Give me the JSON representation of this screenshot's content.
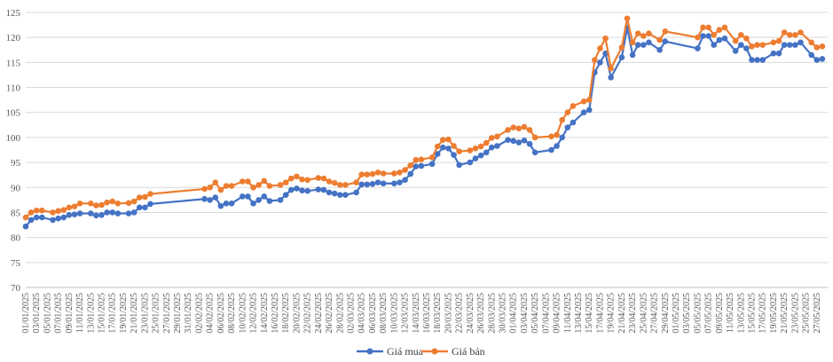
{
  "chart_data": {
    "type": "line",
    "title": "",
    "xlabel": "",
    "ylabel": "",
    "ylim": [
      70,
      125
    ],
    "yticks": [
      70,
      75,
      80,
      85,
      90,
      95,
      100,
      105,
      110,
      115,
      120,
      125
    ],
    "grid": "horizontal",
    "legend_position": "bottom",
    "x_start": "2025-01-01",
    "x_end": "2025-05-29",
    "xtick_labels": [
      "01/01/2025",
      "03/01/2025",
      "05/01/2025",
      "07/01/2025",
      "09/01/2025",
      "11/01/2025",
      "13/01/2025",
      "15/01/2025",
      "17/01/2025",
      "19/01/2025",
      "21/01/2025",
      "23/01/2025",
      "25/01/2025",
      "27/01/2025",
      "29/01/2025",
      "31/01/2025",
      "02/02/2025",
      "04/02/2025",
      "06/02/2025",
      "08/02/2025",
      "10/02/2025",
      "12/02/2025",
      "14/02/2025",
      "16/02/2025",
      "18/02/2025",
      "20/02/2025",
      "22/02/2025",
      "24/02/2025",
      "26/02/2025",
      "28/02/2025",
      "02/03/2025",
      "04/03/2025",
      "06/03/2025",
      "08/03/2025",
      "10/03/2025",
      "12/03/2025",
      "14/03/2025",
      "16/03/2025",
      "18/03/2025",
      "20/03/2025",
      "22/03/2025",
      "24/03/2025",
      "26/03/2025",
      "28/03/2025",
      "30/03/2025",
      "01/04/2025",
      "03/04/2025",
      "05/04/2025",
      "07/04/2025",
      "09/04/2025",
      "11/04/2025",
      "13/04/2025",
      "15/04/2025",
      "17/04/2025",
      "19/04/2025",
      "21/04/2025",
      "23/04/2025",
      "25/04/2025",
      "27/04/2025",
      "29/04/2025",
      "01/05/2025",
      "03/05/2025",
      "05/05/2025",
      "07/05/2025",
      "09/05/2025",
      "11/05/2025",
      "13/05/2025",
      "15/05/2025",
      "17/05/2025",
      "19/05/2025",
      "21/05/2025",
      "23/05/2025",
      "25/05/2025",
      "27/05/2025"
    ],
    "series": [
      {
        "name": "Giá mua",
        "color": "#4472c4",
        "points": [
          [
            "2025-01-01",
            82.2
          ],
          [
            "2025-01-02",
            83.5
          ],
          [
            "2025-01-03",
            84.0
          ],
          [
            "2025-01-04",
            84.0
          ],
          [
            "2025-01-06",
            83.5
          ],
          [
            "2025-01-07",
            83.8
          ],
          [
            "2025-01-08",
            84.0
          ],
          [
            "2025-01-09",
            84.5
          ],
          [
            "2025-01-10",
            84.6
          ],
          [
            "2025-01-11",
            84.8
          ],
          [
            "2025-01-13",
            84.8
          ],
          [
            "2025-01-14",
            84.4
          ],
          [
            "2025-01-15",
            84.5
          ],
          [
            "2025-01-16",
            85.0
          ],
          [
            "2025-01-17",
            85.0
          ],
          [
            "2025-01-18",
            84.8
          ],
          [
            "2025-01-20",
            84.8
          ],
          [
            "2025-01-21",
            85.0
          ],
          [
            "2025-01-22",
            86.0
          ],
          [
            "2025-01-23",
            86.0
          ],
          [
            "2025-01-24",
            86.7
          ],
          [
            "2025-02-03",
            87.7
          ],
          [
            "2025-02-04",
            87.5
          ],
          [
            "2025-02-05",
            88.0
          ],
          [
            "2025-02-06",
            86.3
          ],
          [
            "2025-02-07",
            86.8
          ],
          [
            "2025-02-08",
            86.8
          ],
          [
            "2025-02-10",
            88.2
          ],
          [
            "2025-02-11",
            88.2
          ],
          [
            "2025-02-12",
            86.8
          ],
          [
            "2025-02-13",
            87.5
          ],
          [
            "2025-02-14",
            88.2
          ],
          [
            "2025-02-15",
            87.3
          ],
          [
            "2025-02-17",
            87.5
          ],
          [
            "2025-02-18",
            88.5
          ],
          [
            "2025-02-19",
            89.5
          ],
          [
            "2025-02-20",
            89.8
          ],
          [
            "2025-02-21",
            89.4
          ],
          [
            "2025-02-22",
            89.3
          ],
          [
            "2025-02-24",
            89.6
          ],
          [
            "2025-02-25",
            89.5
          ],
          [
            "2025-02-26",
            89.0
          ],
          [
            "2025-02-27",
            88.8
          ],
          [
            "2025-02-28",
            88.5
          ],
          [
            "2025-03-01",
            88.5
          ],
          [
            "2025-03-03",
            89.0
          ],
          [
            "2025-03-04",
            90.6
          ],
          [
            "2025-03-05",
            90.6
          ],
          [
            "2025-03-06",
            90.7
          ],
          [
            "2025-03-07",
            91.0
          ],
          [
            "2025-03-08",
            90.8
          ],
          [
            "2025-03-10",
            90.8
          ],
          [
            "2025-03-11",
            91.0
          ],
          [
            "2025-03-12",
            91.5
          ],
          [
            "2025-03-13",
            92.7
          ],
          [
            "2025-03-14",
            94.2
          ],
          [
            "2025-03-15",
            94.3
          ],
          [
            "2025-03-17",
            94.7
          ],
          [
            "2025-03-18",
            96.7
          ],
          [
            "2025-03-19",
            98.0
          ],
          [
            "2025-03-20",
            97.8
          ],
          [
            "2025-03-21",
            96.5
          ],
          [
            "2025-03-22",
            94.5
          ],
          [
            "2025-03-24",
            95.0
          ],
          [
            "2025-03-25",
            95.8
          ],
          [
            "2025-03-26",
            96.4
          ],
          [
            "2025-03-27",
            97.0
          ],
          [
            "2025-03-28",
            98.0
          ],
          [
            "2025-03-29",
            98.3
          ],
          [
            "2025-03-31",
            99.5
          ],
          [
            "2025-04-01",
            99.3
          ],
          [
            "2025-04-02",
            99.0
          ],
          [
            "2025-04-03",
            99.4
          ],
          [
            "2025-04-04",
            98.7
          ],
          [
            "2025-04-05",
            97.0
          ],
          [
            "2025-04-08",
            97.5
          ],
          [
            "2025-04-09",
            98.3
          ],
          [
            "2025-04-10",
            100.0
          ],
          [
            "2025-04-11",
            102.0
          ],
          [
            "2025-04-12",
            103.0
          ],
          [
            "2025-04-14",
            105.0
          ],
          [
            "2025-04-15",
            105.5
          ],
          [
            "2025-04-16",
            113.0
          ],
          [
            "2025-04-17",
            115.0
          ],
          [
            "2025-04-18",
            116.8
          ],
          [
            "2025-04-19",
            112.0
          ],
          [
            "2025-04-21",
            116.0
          ],
          [
            "2025-04-22",
            122.0
          ],
          [
            "2025-04-23",
            116.5
          ],
          [
            "2025-04-24",
            118.5
          ],
          [
            "2025-04-25",
            118.5
          ],
          [
            "2025-04-26",
            119.0
          ],
          [
            "2025-04-28",
            117.5
          ],
          [
            "2025-04-29",
            119.2
          ],
          [
            "2025-05-05",
            117.8
          ],
          [
            "2025-05-06",
            120.3
          ],
          [
            "2025-05-07",
            120.3
          ],
          [
            "2025-05-08",
            118.5
          ],
          [
            "2025-05-09",
            119.5
          ],
          [
            "2025-05-10",
            119.8
          ],
          [
            "2025-05-12",
            117.3
          ],
          [
            "2025-05-13",
            118.5
          ],
          [
            "2025-05-14",
            117.8
          ],
          [
            "2025-05-15",
            115.5
          ],
          [
            "2025-05-16",
            115.5
          ],
          [
            "2025-05-17",
            115.5
          ],
          [
            "2025-05-19",
            116.8
          ],
          [
            "2025-05-20",
            116.8
          ],
          [
            "2025-05-21",
            118.5
          ],
          [
            "2025-05-22",
            118.5
          ],
          [
            "2025-05-23",
            118.5
          ],
          [
            "2025-05-24",
            119.0
          ],
          [
            "2025-05-26",
            116.5
          ],
          [
            "2025-05-27",
            115.5
          ],
          [
            "2025-05-28",
            115.7
          ]
        ]
      },
      {
        "name": "Giá bán",
        "color": "#ed7d31",
        "points": [
          [
            "2025-01-01",
            84.0
          ],
          [
            "2025-01-02",
            85.0
          ],
          [
            "2025-01-03",
            85.4
          ],
          [
            "2025-01-04",
            85.4
          ],
          [
            "2025-01-06",
            85.0
          ],
          [
            "2025-01-07",
            85.3
          ],
          [
            "2025-01-08",
            85.5
          ],
          [
            "2025-01-09",
            86.0
          ],
          [
            "2025-01-10",
            86.2
          ],
          [
            "2025-01-11",
            86.8
          ],
          [
            "2025-01-13",
            86.8
          ],
          [
            "2025-01-14",
            86.4
          ],
          [
            "2025-01-15",
            86.5
          ],
          [
            "2025-01-16",
            87.0
          ],
          [
            "2025-01-17",
            87.2
          ],
          [
            "2025-01-18",
            86.8
          ],
          [
            "2025-01-20",
            86.9
          ],
          [
            "2025-01-21",
            87.2
          ],
          [
            "2025-01-22",
            88.0
          ],
          [
            "2025-01-23",
            88.1
          ],
          [
            "2025-01-24",
            88.7
          ],
          [
            "2025-02-03",
            89.7
          ],
          [
            "2025-02-04",
            90.0
          ],
          [
            "2025-02-05",
            91.0
          ],
          [
            "2025-02-06",
            89.5
          ],
          [
            "2025-02-07",
            90.3
          ],
          [
            "2025-02-08",
            90.3
          ],
          [
            "2025-02-10",
            91.2
          ],
          [
            "2025-02-11",
            91.2
          ],
          [
            "2025-02-12",
            90.0
          ],
          [
            "2025-02-13",
            90.5
          ],
          [
            "2025-02-14",
            91.3
          ],
          [
            "2025-02-15",
            90.3
          ],
          [
            "2025-02-17",
            90.5
          ],
          [
            "2025-02-18",
            91.0
          ],
          [
            "2025-02-19",
            91.8
          ],
          [
            "2025-02-20",
            92.2
          ],
          [
            "2025-02-21",
            91.6
          ],
          [
            "2025-02-22",
            91.5
          ],
          [
            "2025-02-24",
            91.9
          ],
          [
            "2025-02-25",
            91.8
          ],
          [
            "2025-02-26",
            91.2
          ],
          [
            "2025-02-27",
            90.9
          ],
          [
            "2025-02-28",
            90.5
          ],
          [
            "2025-03-01",
            90.5
          ],
          [
            "2025-03-03",
            91.0
          ],
          [
            "2025-03-04",
            92.6
          ],
          [
            "2025-03-05",
            92.6
          ],
          [
            "2025-03-06",
            92.7
          ],
          [
            "2025-03-07",
            93.0
          ],
          [
            "2025-03-08",
            92.8
          ],
          [
            "2025-03-10",
            92.8
          ],
          [
            "2025-03-11",
            93.0
          ],
          [
            "2025-03-12",
            93.5
          ],
          [
            "2025-03-13",
            94.4
          ],
          [
            "2025-03-14",
            95.5
          ],
          [
            "2025-03-15",
            95.6
          ],
          [
            "2025-03-17",
            96.0
          ],
          [
            "2025-03-18",
            98.2
          ],
          [
            "2025-03-19",
            99.5
          ],
          [
            "2025-03-20",
            99.6
          ],
          [
            "2025-03-21",
            98.3
          ],
          [
            "2025-03-22",
            97.2
          ],
          [
            "2025-03-24",
            97.4
          ],
          [
            "2025-03-25",
            97.8
          ],
          [
            "2025-03-26",
            98.2
          ],
          [
            "2025-03-27",
            98.9
          ],
          [
            "2025-03-28",
            99.9
          ],
          [
            "2025-03-29",
            100.2
          ],
          [
            "2025-03-31",
            101.5
          ],
          [
            "2025-04-01",
            102.0
          ],
          [
            "2025-04-02",
            101.8
          ],
          [
            "2025-04-03",
            102.1
          ],
          [
            "2025-04-04",
            101.5
          ],
          [
            "2025-04-05",
            100.0
          ],
          [
            "2025-04-08",
            100.2
          ],
          [
            "2025-04-09",
            100.5
          ],
          [
            "2025-04-10",
            103.5
          ],
          [
            "2025-04-11",
            105.0
          ],
          [
            "2025-04-12",
            106.3
          ],
          [
            "2025-04-14",
            107.2
          ],
          [
            "2025-04-15",
            107.5
          ],
          [
            "2025-04-16",
            115.5
          ],
          [
            "2025-04-17",
            117.8
          ],
          [
            "2025-04-18",
            119.8
          ],
          [
            "2025-04-19",
            113.8
          ],
          [
            "2025-04-21",
            118.0
          ],
          [
            "2025-04-22",
            123.8
          ],
          [
            "2025-04-23",
            119.0
          ],
          [
            "2025-04-24",
            120.8
          ],
          [
            "2025-04-25",
            120.3
          ],
          [
            "2025-04-26",
            120.8
          ],
          [
            "2025-04-28",
            119.5
          ],
          [
            "2025-04-29",
            121.2
          ],
          [
            "2025-05-05",
            120.0
          ],
          [
            "2025-05-06",
            122.0
          ],
          [
            "2025-05-07",
            122.0
          ],
          [
            "2025-05-08",
            120.5
          ],
          [
            "2025-05-09",
            121.5
          ],
          [
            "2025-05-10",
            122.0
          ],
          [
            "2025-05-12",
            119.3
          ],
          [
            "2025-05-13",
            120.5
          ],
          [
            "2025-05-14",
            119.8
          ],
          [
            "2025-05-15",
            118.2
          ],
          [
            "2025-05-16",
            118.5
          ],
          [
            "2025-05-17",
            118.5
          ],
          [
            "2025-05-19",
            119.0
          ],
          [
            "2025-05-20",
            119.3
          ],
          [
            "2025-05-21",
            121.0
          ],
          [
            "2025-05-22",
            120.5
          ],
          [
            "2025-05-23",
            120.5
          ],
          [
            "2025-05-24",
            121.0
          ],
          [
            "2025-05-26",
            119.0
          ],
          [
            "2025-05-27",
            118.0
          ],
          [
            "2025-05-28",
            118.2
          ]
        ]
      }
    ]
  }
}
